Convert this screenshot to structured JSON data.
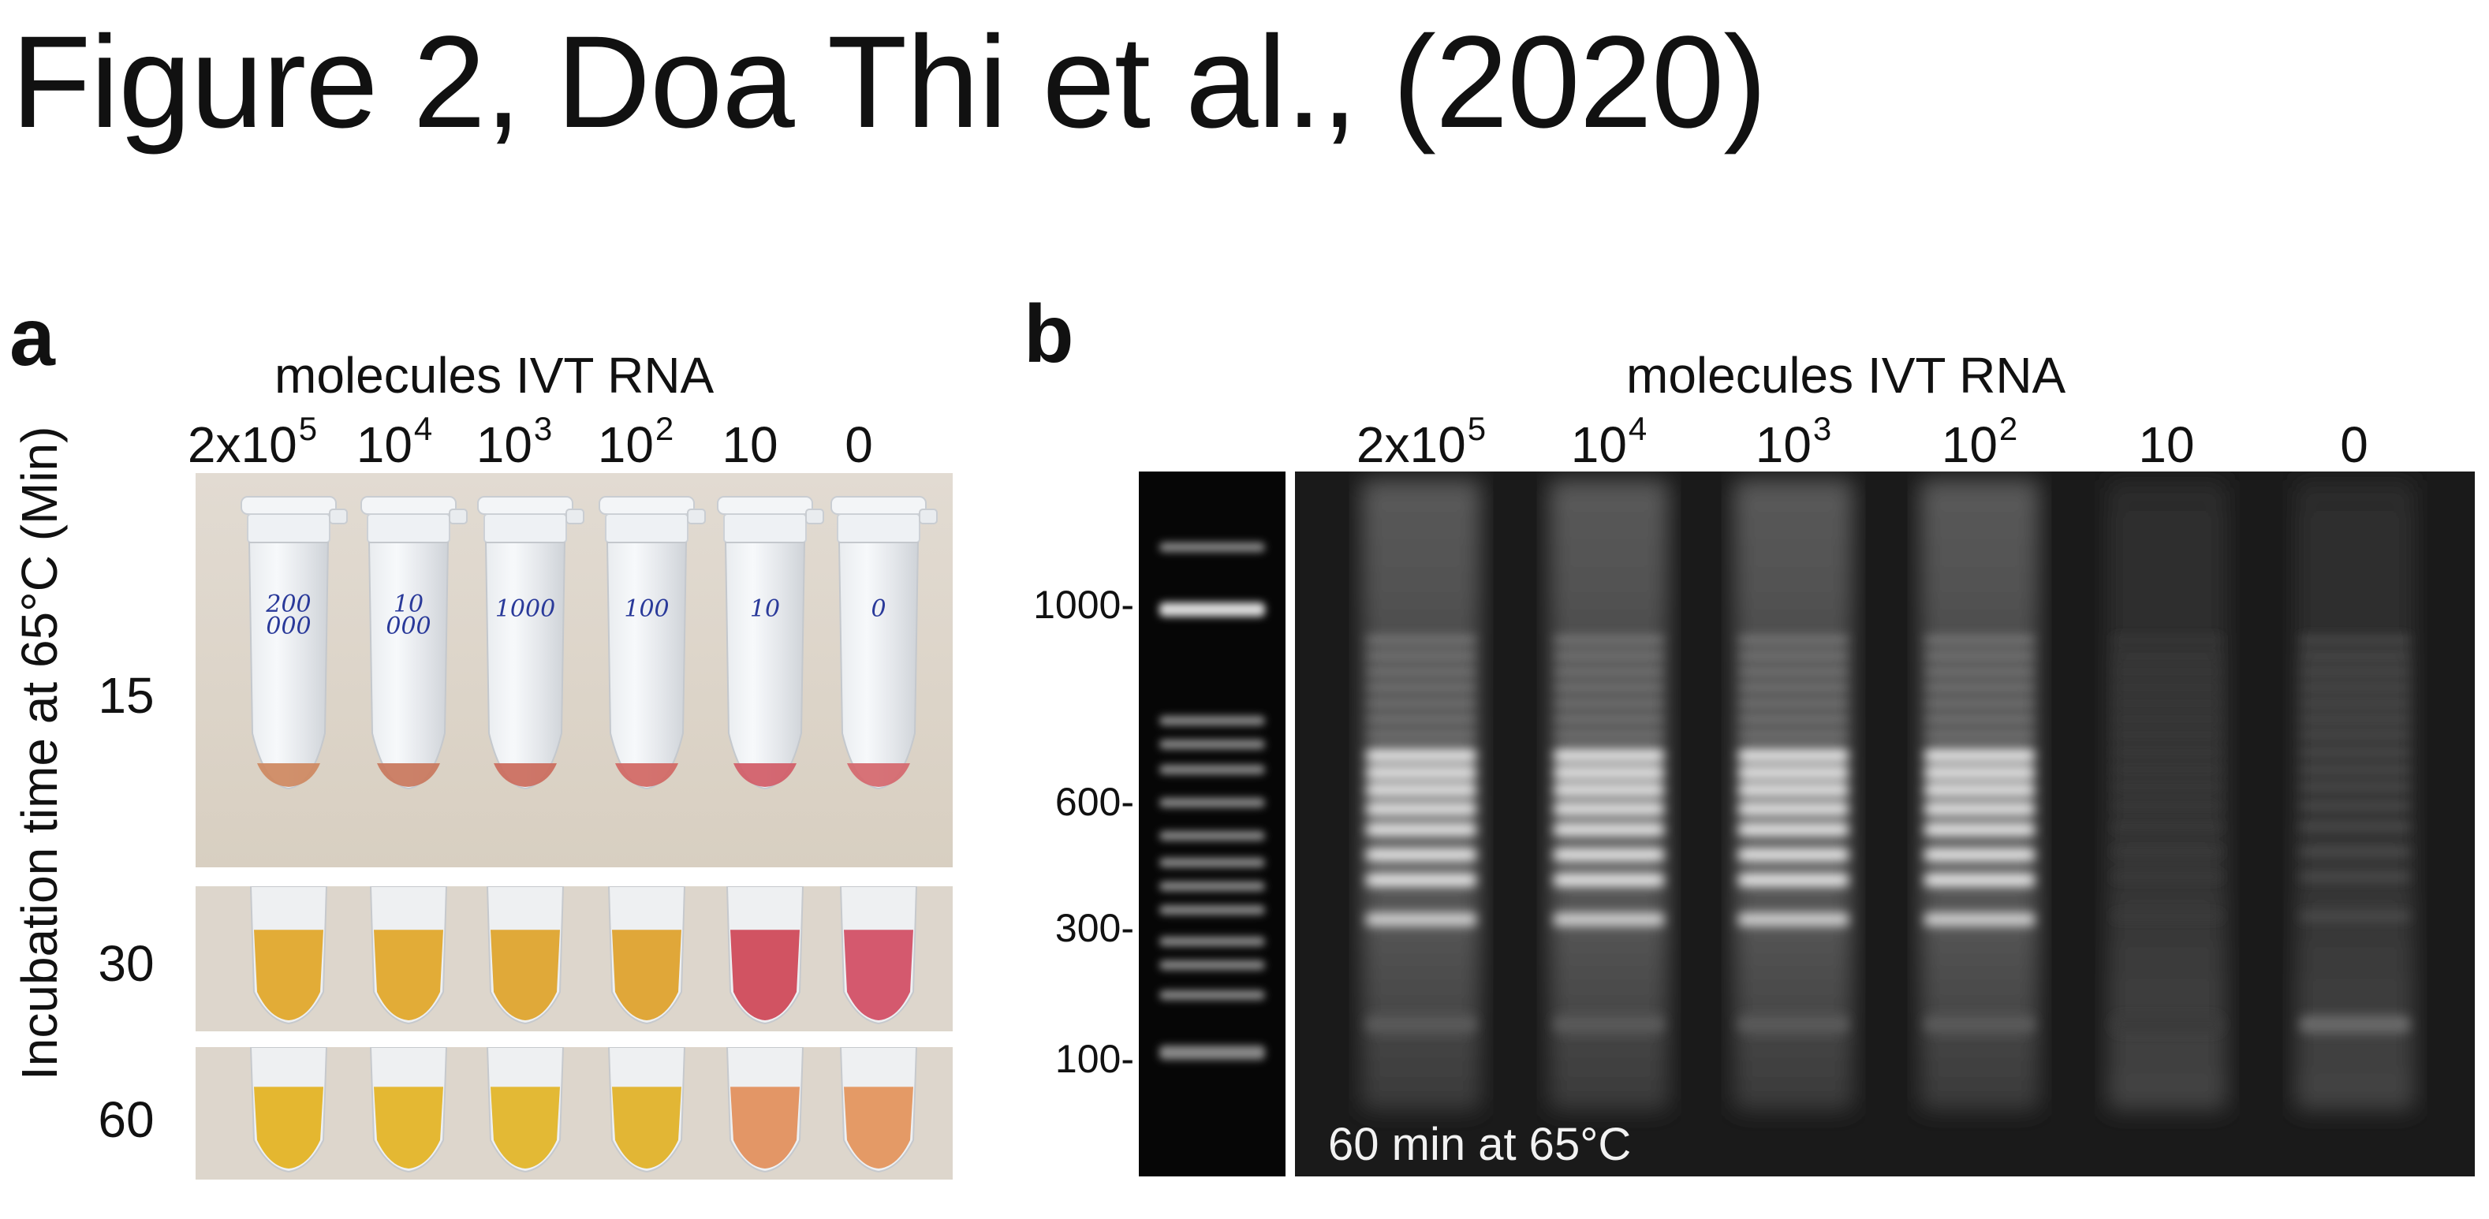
{
  "figure": {
    "title": "Figure 2, Doa Thi et al., (2020)"
  },
  "panel_a": {
    "letter": "a",
    "header": "molecules IVT RNA",
    "y_axis_label": "Incubation time at 65°C (Min)",
    "lanes": [
      {
        "base": "2x10",
        "exp": "5"
      },
      {
        "base": "10",
        "exp": "4"
      },
      {
        "base": "10",
        "exp": "3"
      },
      {
        "base": "10",
        "exp": "2"
      },
      {
        "base": "10",
        "exp": ""
      },
      {
        "base": "0",
        "exp": ""
      }
    ],
    "tube_writing": [
      "200\n000",
      "10\n000",
      "1000",
      "100",
      "10",
      "0"
    ],
    "rows": [
      {
        "time": "15",
        "tube_colors": [
          "#cf8a63",
          "#c97a60",
          "#cb6f60",
          "#d26a66",
          "#d2606a",
          "#d56a70"
        ]
      },
      {
        "time": "30",
        "tube_colors": [
          "#e0a82c",
          "#e0a82c",
          "#dea42e",
          "#dea22e",
          "#cf4a5a",
          "#d25066"
        ]
      },
      {
        "time": "60",
        "tube_colors": [
          "#e3b325",
          "#e3b428",
          "#e2b52a",
          "#e0b22a",
          "#e2905e",
          "#e3955e"
        ]
      }
    ]
  },
  "panel_b": {
    "letter": "b",
    "header": "molecules IVT RNA",
    "lanes": [
      {
        "base": "2x10",
        "exp": "5"
      },
      {
        "base": "10",
        "exp": "4"
      },
      {
        "base": "10",
        "exp": "3"
      },
      {
        "base": "10",
        "exp": "2"
      },
      {
        "base": "10",
        "exp": ""
      },
      {
        "base": "0",
        "exp": ""
      }
    ],
    "size_markers": [
      "1000-",
      "600-",
      "300-",
      "100-"
    ],
    "caption": "60 min at 65°C"
  },
  "colors": {
    "background": "#ffffff",
    "gel_background": "#161616",
    "photo_background": "#dcd3c6"
  }
}
